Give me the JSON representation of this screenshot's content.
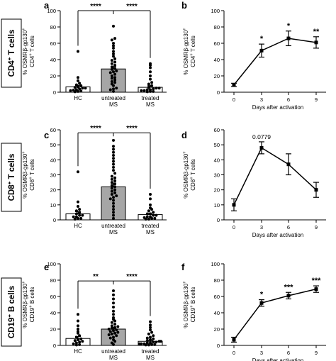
{
  "row_labels": [
    {
      "main": "CD4",
      "sup": "+",
      "rest": " T cells"
    },
    {
      "main": "CD8",
      "sup": "+",
      "rest": " T cells"
    },
    {
      "main": "CD19",
      "sup": "+",
      "rest": " B cells"
    }
  ],
  "chart_data": [
    {
      "panel": "a",
      "type": "bar",
      "ylabel_line1": "% OSMRβ-gp130",
      "ylabel_line1_sup": "+",
      "ylabel_line2": "CD4",
      "ylabel_line2_sup": "+",
      "ylabel_line2_rest": " T cells",
      "ylim": [
        0,
        100
      ],
      "yticks": [
        "0",
        "20",
        "40",
        "60",
        "80",
        "100"
      ],
      "categories": [
        [
          "HC"
        ],
        [
          "untreated",
          "MS"
        ],
        [
          "treated",
          "MS"
        ]
      ],
      "values": [
        6.5,
        28.5,
        6
      ],
      "errors": [
        2,
        3,
        2
      ],
      "bar_fills": [
        "#ffffff",
        "#a6a6a6",
        "#ffffff"
      ],
      "points": [
        [
          0.5,
          1,
          1.5,
          2,
          2.5,
          3,
          4,
          5,
          5,
          6,
          6.5,
          8,
          9,
          11,
          14,
          18,
          50
        ],
        [
          1,
          3,
          4,
          5,
          8,
          10,
          12,
          13,
          15,
          17,
          18,
          20,
          22,
          24,
          25,
          26,
          28,
          29,
          31,
          33,
          35,
          37,
          39,
          41,
          44,
          47,
          50,
          54,
          57,
          60,
          64,
          66,
          81
        ],
        [
          0.5,
          1,
          1,
          2,
          2,
          3,
          3,
          4,
          5,
          5,
          6,
          8,
          10,
          12,
          16,
          20,
          25,
          30,
          33,
          35
        ]
      ],
      "comparisons": [
        {
          "from": 0,
          "to": 1,
          "label": "****"
        },
        {
          "from": 1,
          "to": 2,
          "label": "****"
        }
      ],
      "bracket_y": 100
    },
    {
      "panel": "b",
      "type": "line",
      "ylabel_line1": "% OSMRβ-gp130",
      "ylabel_line1_sup": "+",
      "ylabel_line2": "CD4",
      "ylabel_line2_sup": "+",
      "ylabel_line2_rest": " T cells",
      "ylim": [
        0,
        100
      ],
      "yticks": [
        "0",
        "20",
        "40",
        "60",
        "80",
        "100"
      ],
      "xlabel": "Days after activation",
      "x": [
        0,
        3,
        6,
        9
      ],
      "xticks": [
        "0",
        "3",
        "6",
        "9"
      ],
      "y": [
        9,
        51,
        66,
        61
      ],
      "errors": [
        2,
        8,
        9,
        7
      ],
      "annotations": [
        "",
        "*",
        "*",
        "**"
      ]
    },
    {
      "panel": "c",
      "type": "bar",
      "ylabel_line1": "% OSMRβ-gp130",
      "ylabel_line1_sup": "+",
      "ylabel_line2": "CD8",
      "ylabel_line2_sup": "+",
      "ylabel_line2_rest": " T cells",
      "ylim": [
        0,
        60
      ],
      "yticks": [
        "0",
        "10",
        "20",
        "30",
        "40",
        "50",
        "60"
      ],
      "categories": [
        [
          "HC"
        ],
        [
          "untreated",
          "MS"
        ],
        [
          "treated",
          "MS"
        ]
      ],
      "values": [
        4,
        22,
        3.5
      ],
      "errors": [
        1.5,
        2.5,
        1
      ],
      "bar_fills": [
        "#ffffff",
        "#a6a6a6",
        "#ffffff"
      ],
      "points": [
        [
          0.5,
          1,
          1,
          2,
          2,
          3,
          3,
          4,
          5,
          6,
          7,
          9,
          12,
          32
        ],
        [
          1,
          3,
          5,
          7,
          9,
          11,
          13,
          14,
          15,
          16,
          17,
          18,
          19,
          20,
          21,
          22,
          23,
          24,
          25,
          26,
          27,
          28,
          29,
          31,
          33,
          35,
          37,
          39,
          41,
          43,
          45,
          47,
          49,
          53
        ],
        [
          0.5,
          0.5,
          1,
          1,
          1.5,
          2,
          2,
          3,
          3,
          4,
          4,
          5,
          6,
          7,
          8,
          10,
          14,
          17
        ]
      ],
      "comparisons": [
        {
          "from": 0,
          "to": 1,
          "label": "****"
        },
        {
          "from": 1,
          "to": 2,
          "label": "****"
        }
      ],
      "bracket_y": 58
    },
    {
      "panel": "d",
      "type": "line",
      "ylabel_line1": "% OSMRβ-gp130",
      "ylabel_line1_sup": "+",
      "ylabel_line2": "CD8",
      "ylabel_line2_sup": "+",
      "ylabel_line2_rest": " T cells",
      "ylim": [
        0,
        60
      ],
      "yticks": [
        "0",
        "10",
        "20",
        "30",
        "40",
        "50",
        "60"
      ],
      "xlabel": "Days after activation",
      "x": [
        0,
        3,
        6,
        9
      ],
      "xticks": [
        "0",
        "3",
        "6",
        "9"
      ],
      "y": [
        10,
        48,
        37,
        20
      ],
      "errors": [
        4,
        4,
        7,
        5
      ],
      "annotations": [
        "",
        "0.0779",
        "",
        ""
      ]
    },
    {
      "panel": "e",
      "type": "bar",
      "ylabel_line1": "% OSMRβ-gp130",
      "ylabel_line1_sup": "+",
      "ylabel_line2": "CD19",
      "ylabel_line2_sup": "+",
      "ylabel_line2_rest": " B cells",
      "ylim": [
        0,
        100
      ],
      "yticks": [
        "0",
        "20",
        "40",
        "60",
        "80",
        "100"
      ],
      "categories": [
        [
          "HC"
        ],
        [
          "untreated",
          "MS"
        ],
        [
          "treated",
          "MS"
        ]
      ],
      "values": [
        8.5,
        20,
        5
      ],
      "errors": [
        2.5,
        2,
        1
      ],
      "bar_fills": [
        "#ffffff",
        "#a6a6a6",
        "#ffffff"
      ],
      "points": [
        [
          0.5,
          1,
          2,
          3,
          4,
          5,
          6,
          7,
          8,
          10,
          12,
          15,
          17,
          20,
          24,
          30,
          38
        ],
        [
          1,
          3,
          5,
          7,
          9,
          10,
          12,
          13,
          14,
          15,
          16,
          17,
          18,
          19,
          20,
          21,
          22,
          23,
          24,
          26,
          28,
          30,
          32,
          34,
          38,
          42,
          47,
          52,
          57,
          62,
          67
        ],
        [
          0.5,
          0.5,
          1,
          1,
          2,
          2,
          2,
          3,
          3,
          4,
          4,
          5,
          5,
          6,
          7,
          8,
          9,
          10,
          12,
          14,
          16,
          19,
          22,
          25,
          29
        ]
      ],
      "comparisons": [
        {
          "from": 0,
          "to": 1,
          "label": "**"
        },
        {
          "from": 1,
          "to": 2,
          "label": "****"
        }
      ],
      "bracket_y": 79
    },
    {
      "panel": "f",
      "type": "line",
      "ylabel_line1": "% OSMRβ-gp130",
      "ylabel_line1_sup": "+",
      "ylabel_line2": "CD19",
      "ylabel_line2_sup": "+",
      "ylabel_line2_rest": " B cells",
      "ylim": [
        0,
        100
      ],
      "yticks": [
        "0",
        "20",
        "40",
        "60",
        "80",
        "100"
      ],
      "xlabel": "Days after activation",
      "x": [
        0,
        3,
        6,
        9
      ],
      "xticks": [
        "0",
        "3",
        "6",
        "9"
      ],
      "y": [
        7,
        52,
        61,
        69
      ],
      "errors": [
        3,
        4,
        4,
        4
      ],
      "annotations": [
        "",
        "*",
        "***",
        "***"
      ]
    }
  ]
}
